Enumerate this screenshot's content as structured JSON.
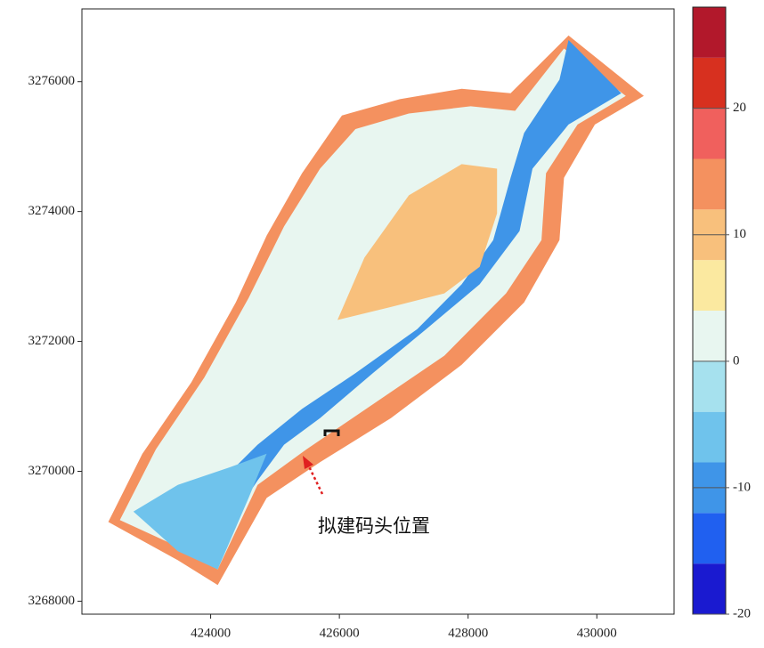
{
  "chart_data": {
    "type": "contour",
    "xlim": [
      422000,
      431200
    ],
    "ylim": [
      3267800,
      3277120
    ],
    "xticks": [
      424000,
      426000,
      428000,
      430000
    ],
    "yticks": [
      3268000,
      3270000,
      3272000,
      3274000,
      3276000
    ],
    "colorbar": {
      "lim": [
        -20,
        28
      ],
      "ticks": [
        -20,
        -10,
        0,
        10,
        20
      ],
      "levels": [
        -20,
        -16,
        -12,
        -8,
        -4,
        0,
        4,
        8,
        12,
        16,
        20,
        24,
        28
      ],
      "colors": [
        "#1a1ad0",
        "#2060f0",
        "#3f95e8",
        "#6fc3ec",
        "#a6e1ee",
        "#e8f6f0",
        "#fbe9a0",
        "#f8c07c",
        "#f4915f",
        "#f0605d",
        "#d7301f",
        "#b2182b"
      ]
    },
    "regions": [
      {
        "value": 14,
        "x": [
          422410,
          422940,
          423700,
          424390,
          424870,
          425420,
          426040,
          426940,
          427900,
          428660,
          429560,
          430730,
          429970,
          429490,
          429420,
          428870,
          427900,
          426800,
          425700,
          424870,
          424110,
          423490
        ],
        "y": [
          3269220,
          3270270,
          3271370,
          3272600,
          3273630,
          3274590,
          3275480,
          3275730,
          3275890,
          3275820,
          3276710,
          3275780,
          3275340,
          3274520,
          3273560,
          3272600,
          3271640,
          3270820,
          3270140,
          3269590,
          3268250,
          3268630
        ]
      },
      {
        "value": 2,
        "x": [
          422590,
          423150,
          423900,
          424590,
          425140,
          425700,
          426250,
          427080,
          428040,
          428730,
          429490,
          430450,
          429700,
          429210,
          429140,
          428590,
          427630,
          426520,
          425490,
          424730,
          424110,
          423490
        ],
        "y": [
          3269250,
          3270340,
          3271440,
          3272670,
          3273770,
          3274660,
          3275270,
          3275510,
          3275620,
          3275550,
          3276510,
          3275780,
          3275340,
          3274590,
          3273560,
          3272740,
          3271780,
          3271030,
          3270340,
          3269790,
          3268490,
          3268840
        ]
      },
      {
        "value": -9,
        "x": [
          429560,
          430380,
          429560,
          429000,
          428800,
          428180,
          427350,
          426520,
          425700,
          425140,
          424730,
          424180,
          423630,
          423900,
          424730,
          425420,
          426250,
          427210,
          427900,
          428390,
          428660,
          428870,
          429420
        ],
        "y": [
          3276640,
          3275820,
          3275340,
          3274660,
          3273700,
          3272880,
          3272190,
          3271510,
          3270820,
          3270410,
          3269860,
          3269040,
          3269040,
          3269590,
          3270410,
          3270960,
          3271510,
          3272190,
          3272880,
          3273560,
          3274520,
          3275210,
          3276030
        ]
      },
      {
        "value": -6,
        "x": [
          422800,
          423490,
          424320,
          424870,
          424590,
          424110,
          423490
        ],
        "y": [
          3269380,
          3269790,
          3270070,
          3270270,
          3269590,
          3268490,
          3268770
        ]
      },
      {
        "value": 11,
        "x": [
          425970,
          426390,
          427080,
          427900,
          428450,
          428450,
          428180,
          427630,
          426800
        ],
        "y": [
          3272330,
          3273290,
          3274250,
          3274730,
          3274660,
          3273970,
          3273150,
          3272740,
          3272530
        ]
      }
    ],
    "annotation": "拟建码头位置"
  }
}
